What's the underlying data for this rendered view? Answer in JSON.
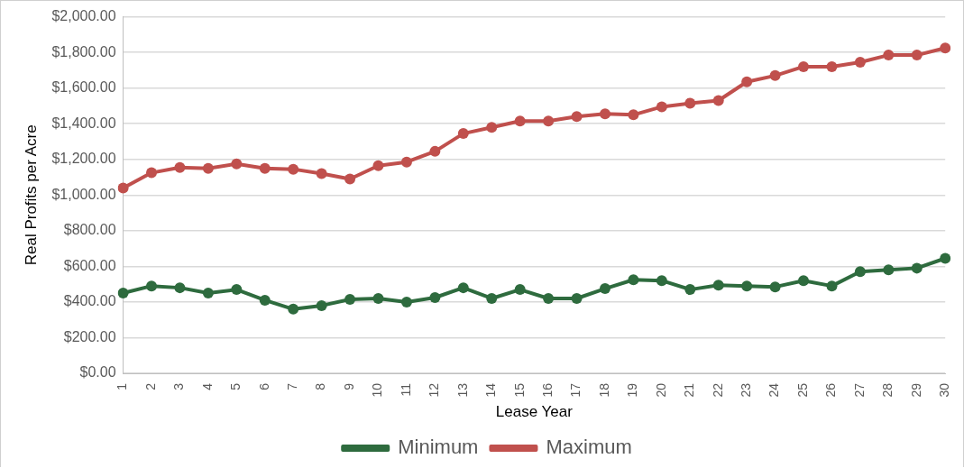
{
  "chart_data": {
    "type": "line",
    "xlabel": "Lease Year",
    "ylabel": "Real Profits per Acre",
    "categories": [
      "1",
      "2",
      "3",
      "4",
      "5",
      "6",
      "7",
      "8",
      "9",
      "10",
      "11",
      "12",
      "13",
      "14",
      "15",
      "16",
      "17",
      "18",
      "19",
      "20",
      "21",
      "22",
      "23",
      "24",
      "25",
      "26",
      "27",
      "28",
      "29",
      "30"
    ],
    "series": [
      {
        "name": "Minimum",
        "color": "#2e6b3e",
        "values": [
          450,
          490,
          480,
          450,
          470,
          410,
          360,
          380,
          415,
          420,
          400,
          425,
          480,
          420,
          470,
          420,
          420,
          475,
          525,
          520,
          470,
          495,
          490,
          485,
          520,
          490,
          570,
          580,
          590,
          645
        ]
      },
      {
        "name": "Maximum",
        "color": "#c0504d",
        "values": [
          1040,
          1125,
          1155,
          1150,
          1175,
          1150,
          1145,
          1120,
          1090,
          1165,
          1185,
          1245,
          1345,
          1380,
          1415,
          1415,
          1440,
          1455,
          1450,
          1495,
          1515,
          1530,
          1635,
          1670,
          1720,
          1720,
          1745,
          1785,
          1785,
          1825
        ]
      }
    ],
    "ylim": [
      0,
      2000
    ],
    "yticks": [
      {
        "value": 0,
        "label": "$0.00"
      },
      {
        "value": 200,
        "label": "$200.00"
      },
      {
        "value": 400,
        "label": "$400.00"
      },
      {
        "value": 600,
        "label": "$600.00"
      },
      {
        "value": 800,
        "label": "$800.00"
      },
      {
        "value": 1000,
        "label": "$1,000.00"
      },
      {
        "value": 1200,
        "label": "$1,200.00"
      },
      {
        "value": 1400,
        "label": "$1,400.00"
      },
      {
        "value": 1600,
        "label": "$1,600.00"
      },
      {
        "value": 1800,
        "label": "$1,800.00"
      },
      {
        "value": 2000,
        "label": "$2,000.00"
      }
    ],
    "grid": "y",
    "legend": "bottom",
    "marker": "circle",
    "line_style": "solid"
  }
}
